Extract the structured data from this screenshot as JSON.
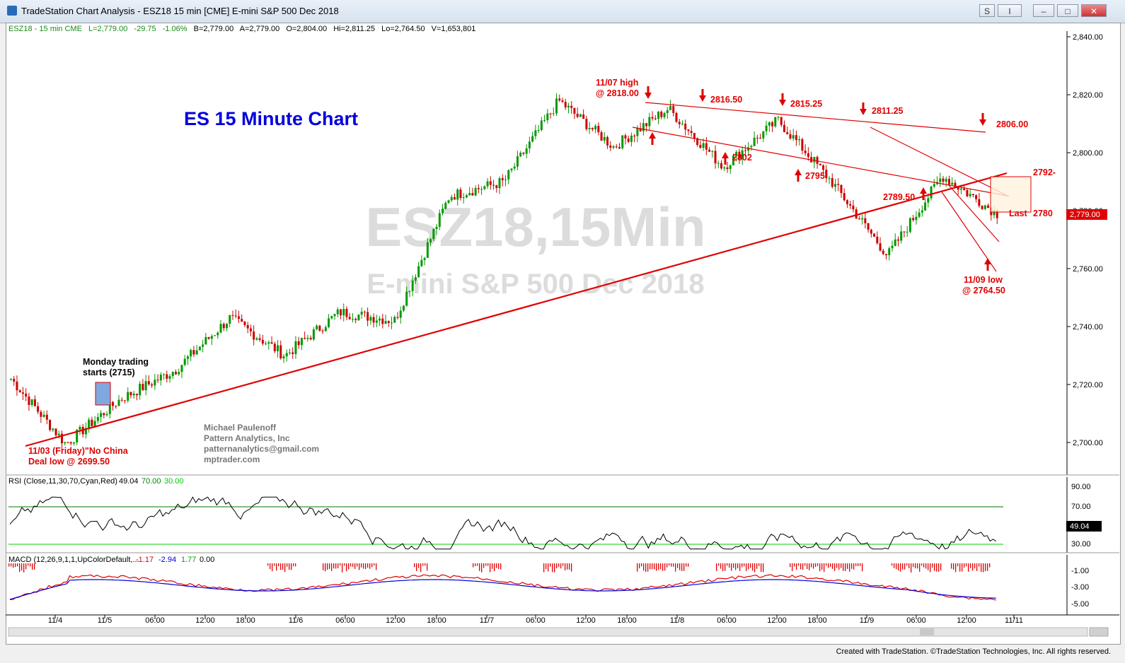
{
  "window": {
    "title": "TradeStation Chart Analysis - ESZ18 15 min [CME] E-mini S&P 500 Dec 2018",
    "buttons": {
      "s": "S",
      "i": "I"
    }
  },
  "info": {
    "symbol": "ESZ18 - 15 min  CME",
    "last": "L=2,779.00",
    "chg": "-29.75",
    "pct": "-1.06%",
    "bid": "B=2,779.00",
    "ask": "A=2,779.00",
    "open": "O=2,804.00",
    "high": "Hi=2,811.25",
    "low": "Lo=2,764.50",
    "vol": "V=1,653,801"
  },
  "watermark": {
    "symbol": "ESZ18,15Min",
    "name": "E-mini S&P 500 Dec 2018"
  },
  "heading": "ES 15 Minute Chart",
  "author": [
    "Michael Paulenoff",
    "Pattern Analytics, Inc",
    "patternanalytics@gmail.com",
    "mptrader.com"
  ],
  "price_axis": {
    "ticks": [
      "2,840.00",
      "2,820.00",
      "2,800.00",
      "2,780.00",
      "2,760.00",
      "2,740.00",
      "2,720.00",
      "2,700.00"
    ],
    "last_badge": "2,779.00"
  },
  "rsi": {
    "label": "RSI (Close,11,30,70,Cyan,Red)",
    "value": "49.04",
    "ob": "70.00",
    "os": "30.00",
    "ticks": [
      "90.00",
      "70.00",
      "30.00"
    ],
    "badge": "49.04"
  },
  "macd": {
    "label": "MACD (12,26,9,1,1,UpColorDefault,...",
    "v1": "-1.17",
    "v2": "-2.94",
    "v3": "1.77",
    "v4": "0.00",
    "ticks": [
      "-1.00",
      "-3.00",
      "-5.00"
    ]
  },
  "time_axis": [
    {
      "label": "11/4"
    },
    {
      "label": "11/5"
    },
    {
      "label": "06:00"
    },
    {
      "label": "12:00"
    },
    {
      "label": "18:00"
    },
    {
      "label": "11/6"
    },
    {
      "label": "06:00"
    },
    {
      "label": "12:00"
    },
    {
      "label": "18:00"
    },
    {
      "label": "11/7"
    },
    {
      "label": "06:00"
    },
    {
      "label": "12:00"
    },
    {
      "label": "18:00"
    },
    {
      "label": "11/8"
    },
    {
      "label": "06:00"
    },
    {
      "label": "12:00"
    },
    {
      "label": "18:00"
    },
    {
      "label": "11/9"
    },
    {
      "label": "06:00"
    },
    {
      "label": "12:00"
    },
    {
      "label": "11/11"
    }
  ],
  "annotations": {
    "high_label_1": "11/07 high",
    "high_label_2": "@ 2818.00",
    "p2816": "2816.50",
    "p2815": "2815.25",
    "p2811": "2811.25",
    "p2806": "2806.00",
    "p2802": "2802",
    "p2795": "2795",
    "p2789": "2789.50",
    "p2792": "2792-",
    "last": "Last",
    "p2780": "2780",
    "low_label_1": "11/09 low",
    "low_label_2": "@ 2764.50",
    "monday_1": "Monday trading",
    "monday_2": "starts (2715)",
    "china_1": "11/03 (Friday)\"No China",
    "china_2": "Deal low @ 2699.50"
  },
  "colors": {
    "annot": "#e00000",
    "heading": "#0000dd",
    "up": "#009900",
    "down": "#cc0000",
    "trend": "#e00000"
  },
  "footer": "Created with TradeStation. ©TradeStation Technologies, Inc. All rights reserved.",
  "chart_data": {
    "type": "candlestick",
    "title": "ES 15 Minute Chart",
    "ylim": [
      2690,
      2845
    ],
    "close_path": [
      [
        "11/2 close",
        2722
      ],
      [
        "11/3 low",
        2699.5
      ],
      [
        "11/5 open",
        2715
      ],
      [
        "11/5",
        2725
      ],
      [
        "11/6 00:00",
        2743
      ],
      [
        "11/6 04:00",
        2730
      ],
      [
        "11/6 12:00",
        2745
      ],
      [
        "11/7 00:00",
        2742
      ],
      [
        "11/7 06:00",
        2785
      ],
      [
        "11/7 12:00",
        2790
      ],
      [
        "11/7 18:00",
        2818
      ],
      [
        "11/8 04:00",
        2802
      ],
      [
        "11/8 12:00",
        2815.25
      ],
      [
        "11/8 16:00",
        2795
      ],
      [
        "11/9 00:00",
        2811.25
      ],
      [
        "11/9 06:00",
        2789.5
      ],
      [
        "11/9 13:00",
        2764.5
      ],
      [
        "11/9 15:00",
        2792
      ],
      [
        "11/9 close",
        2779
      ]
    ]
  }
}
